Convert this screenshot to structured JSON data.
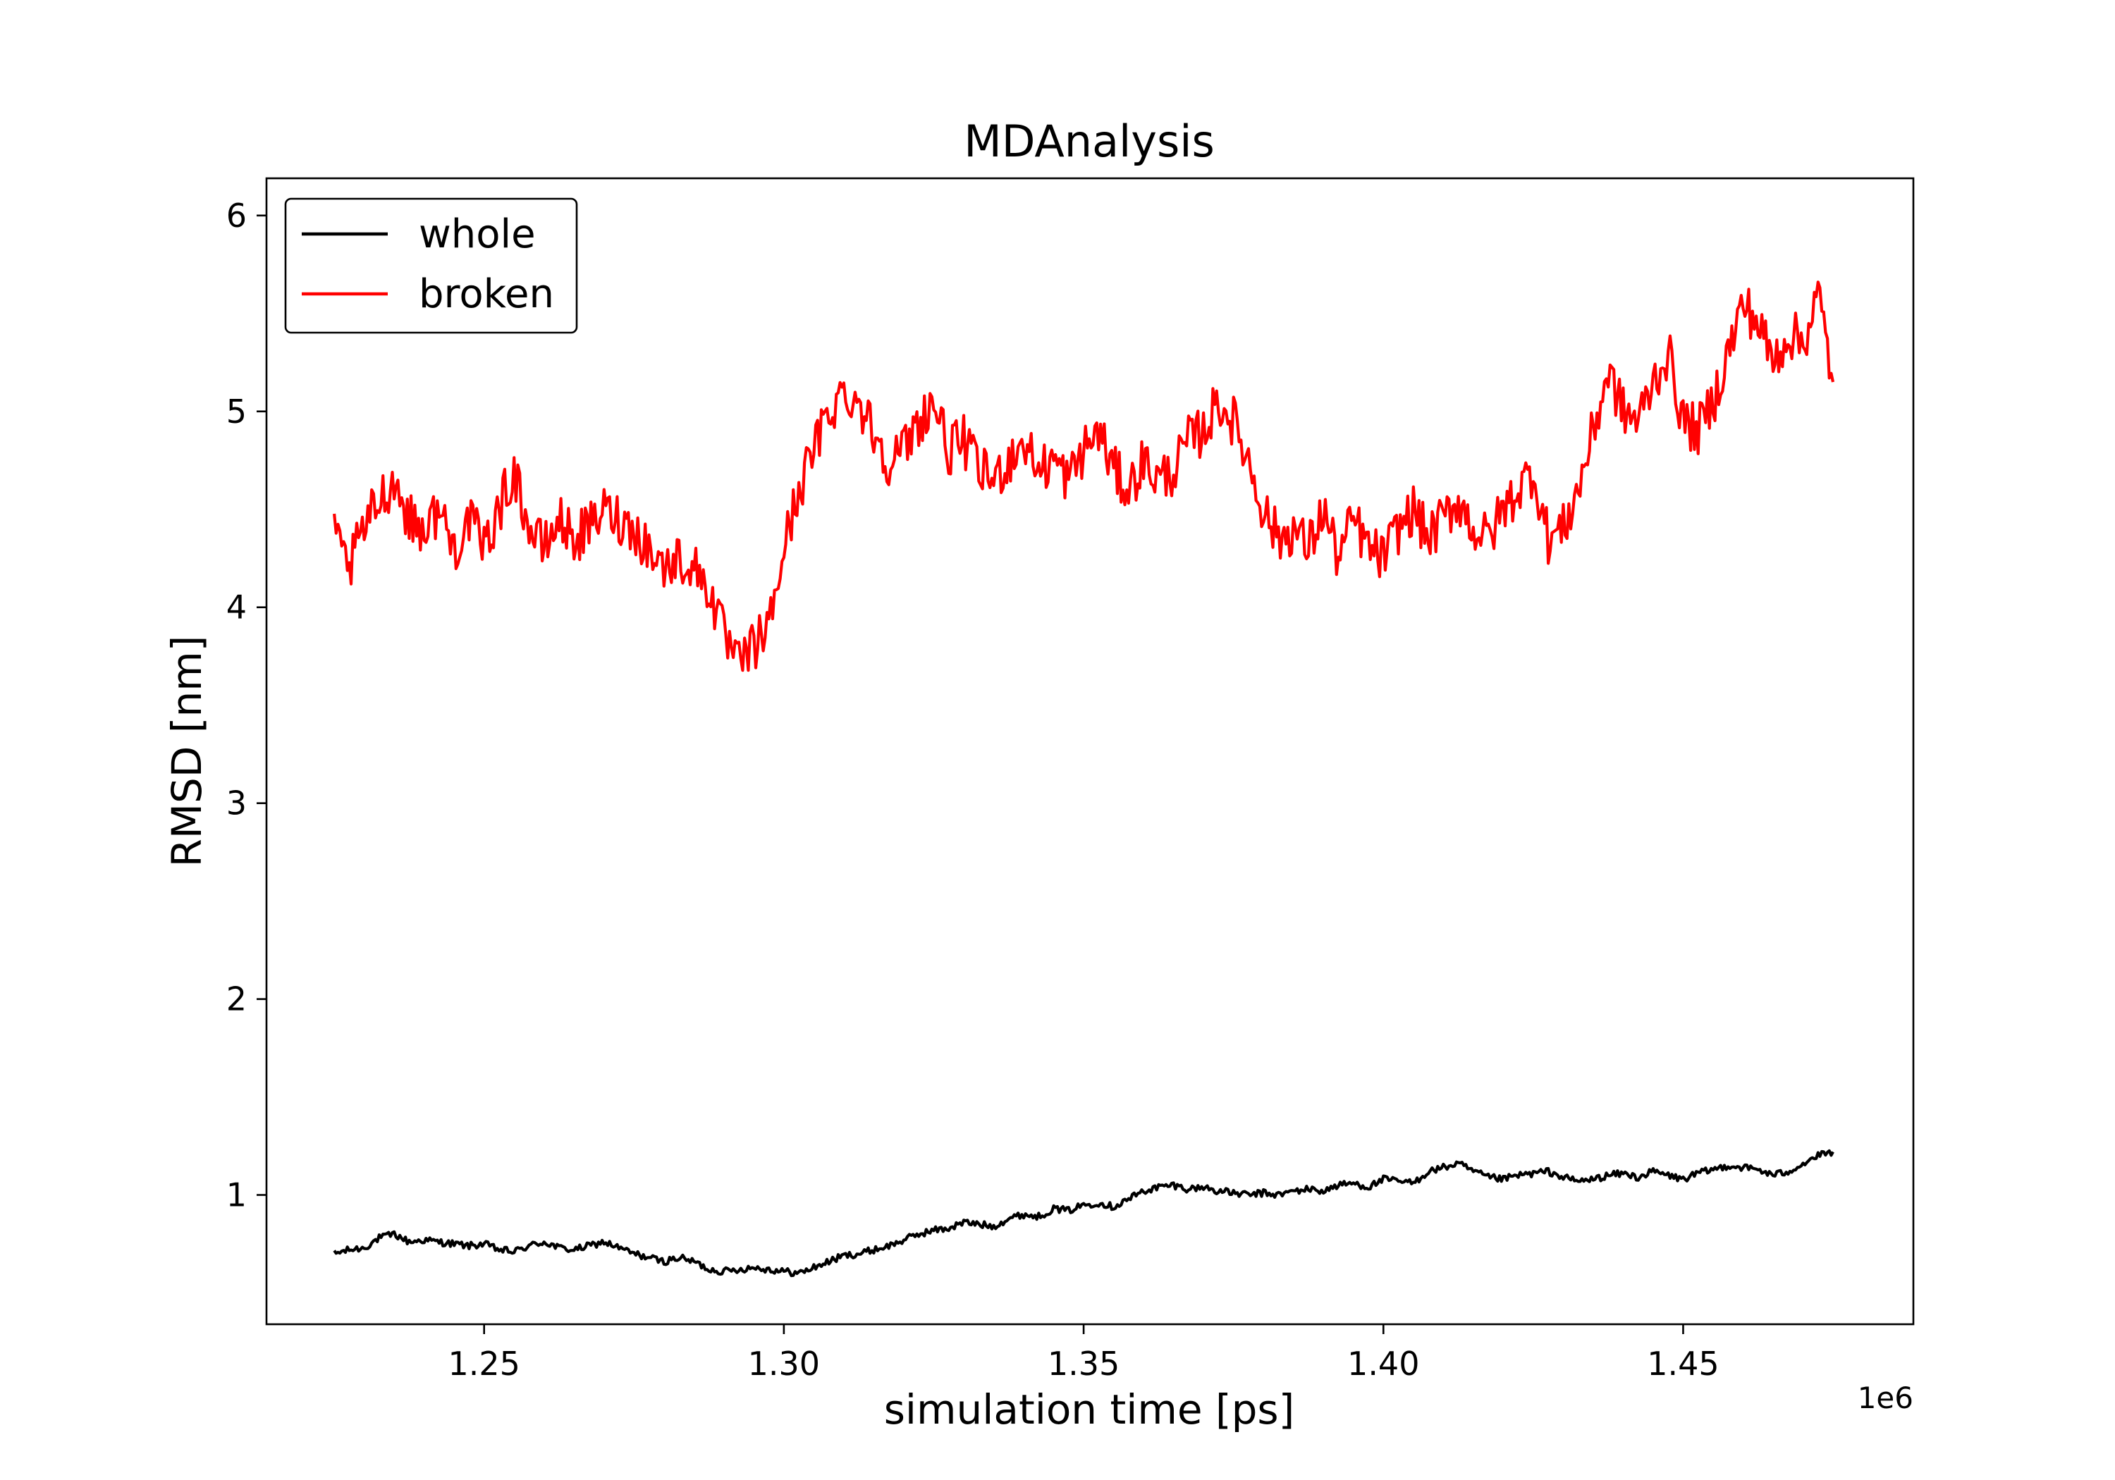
{
  "chart_data": {
    "type": "line",
    "title": "MDAnalysis",
    "xlabel": "simulation time [ps]",
    "ylabel": "RMSD [nm]",
    "x_offset_label": "1e6",
    "xlim": [
      1.2137,
      1.4884
    ],
    "ylim": [
      0.34,
      6.19
    ],
    "x_ticks": [
      1.25,
      1.3,
      1.35,
      1.4,
      1.45
    ],
    "x_tick_labels": [
      "1.25",
      "1.30",
      "1.35",
      "1.40",
      "1.45"
    ],
    "y_ticks": [
      1,
      2,
      3,
      4,
      5,
      6
    ],
    "y_tick_labels": [
      "1",
      "2",
      "3",
      "4",
      "5",
      "6"
    ],
    "grid": false,
    "legend_position": "top-left",
    "series": [
      {
        "name": "whole",
        "color": "#000000",
        "x": [
          1.225,
          1.2275,
          1.23,
          1.2325,
          1.235,
          1.2375,
          1.24,
          1.2425,
          1.245,
          1.2475,
          1.25,
          1.2525,
          1.255,
          1.2575,
          1.26,
          1.2625,
          1.265,
          1.2675,
          1.27,
          1.2725,
          1.275,
          1.2775,
          1.28,
          1.2825,
          1.285,
          1.2875,
          1.29,
          1.2925,
          1.295,
          1.2975,
          1.3,
          1.3025,
          1.305,
          1.3075,
          1.31,
          1.3125,
          1.315,
          1.3175,
          1.32,
          1.3225,
          1.325,
          1.3275,
          1.33,
          1.3325,
          1.335,
          1.3375,
          1.34,
          1.3425,
          1.345,
          1.3475,
          1.35,
          1.3525,
          1.355,
          1.3575,
          1.36,
          1.3625,
          1.365,
          1.3675,
          1.37,
          1.3725,
          1.375,
          1.3775,
          1.38,
          1.3825,
          1.385,
          1.3875,
          1.39,
          1.3925,
          1.395,
          1.3975,
          1.4,
          1.4025,
          1.405,
          1.4075,
          1.41,
          1.4125,
          1.415,
          1.4175,
          1.42,
          1.4225,
          1.425,
          1.4275,
          1.43,
          1.4325,
          1.435,
          1.4375,
          1.44,
          1.4425,
          1.445,
          1.4475,
          1.45,
          1.4525,
          1.455,
          1.4575,
          1.46,
          1.4625,
          1.465,
          1.4675,
          1.47,
          1.4725,
          1.475
        ],
        "y": [
          0.7,
          0.72,
          0.73,
          0.78,
          0.8,
          0.76,
          0.77,
          0.76,
          0.75,
          0.74,
          0.75,
          0.72,
          0.71,
          0.74,
          0.76,
          0.73,
          0.72,
          0.74,
          0.76,
          0.73,
          0.7,
          0.68,
          0.66,
          0.68,
          0.66,
          0.62,
          0.61,
          0.62,
          0.63,
          0.62,
          0.61,
          0.6,
          0.63,
          0.66,
          0.69,
          0.7,
          0.72,
          0.74,
          0.77,
          0.8,
          0.82,
          0.83,
          0.86,
          0.85,
          0.84,
          0.88,
          0.9,
          0.89,
          0.93,
          0.92,
          0.95,
          0.96,
          0.94,
          0.98,
          1.02,
          1.04,
          1.05,
          1.03,
          1.04,
          1.02,
          1.01,
          1.0,
          1.01,
          1.0,
          1.02,
          1.03,
          1.02,
          1.05,
          1.06,
          1.04,
          1.08,
          1.07,
          1.06,
          1.12,
          1.14,
          1.16,
          1.12,
          1.09,
          1.08,
          1.1,
          1.11,
          1.12,
          1.09,
          1.07,
          1.08,
          1.1,
          1.11,
          1.09,
          1.12,
          1.1,
          1.08,
          1.11,
          1.13,
          1.15,
          1.14,
          1.13,
          1.1,
          1.12,
          1.16,
          1.2,
          1.22
        ],
        "noise": 0.018
      },
      {
        "name": "broken",
        "color": "#ff0000",
        "x": [
          1.225,
          1.2275,
          1.23,
          1.2325,
          1.235,
          1.2375,
          1.24,
          1.2425,
          1.245,
          1.2475,
          1.25,
          1.2525,
          1.255,
          1.2575,
          1.26,
          1.2625,
          1.265,
          1.2675,
          1.27,
          1.2725,
          1.275,
          1.2775,
          1.28,
          1.2825,
          1.285,
          1.2875,
          1.29,
          1.2925,
          1.295,
          1.2975,
          1.3,
          1.3025,
          1.305,
          1.3075,
          1.31,
          1.3125,
          1.315,
          1.3175,
          1.32,
          1.3225,
          1.325,
          1.3275,
          1.33,
          1.3325,
          1.335,
          1.3375,
          1.34,
          1.3425,
          1.345,
          1.3475,
          1.35,
          1.3525,
          1.355,
          1.3575,
          1.36,
          1.3625,
          1.365,
          1.3675,
          1.37,
          1.3725,
          1.375,
          1.3775,
          1.38,
          1.3825,
          1.385,
          1.3875,
          1.39,
          1.3925,
          1.395,
          1.3975,
          1.4,
          1.4025,
          1.405,
          1.4075,
          1.41,
          1.4125,
          1.415,
          1.4175,
          1.42,
          1.4225,
          1.425,
          1.4275,
          1.43,
          1.4325,
          1.435,
          1.4375,
          1.44,
          1.4425,
          1.445,
          1.4475,
          1.45,
          1.4525,
          1.455,
          1.4575,
          1.46,
          1.4625,
          1.465,
          1.4675,
          1.47,
          1.4725,
          1.475
        ],
        "y": [
          4.35,
          4.2,
          4.4,
          4.55,
          4.65,
          4.45,
          4.4,
          4.5,
          4.3,
          4.45,
          4.3,
          4.5,
          4.7,
          4.4,
          4.3,
          4.45,
          4.35,
          4.4,
          4.5,
          4.45,
          4.4,
          4.3,
          4.2,
          4.25,
          4.2,
          4.1,
          3.85,
          3.7,
          3.8,
          3.9,
          4.3,
          4.6,
          4.8,
          5.0,
          5.1,
          5.05,
          4.9,
          4.75,
          4.8,
          4.95,
          5.05,
          4.8,
          4.85,
          4.7,
          4.65,
          4.75,
          4.85,
          4.7,
          4.75,
          4.65,
          4.8,
          4.9,
          4.7,
          4.6,
          4.75,
          4.65,
          4.7,
          4.85,
          4.9,
          5.05,
          4.95,
          4.75,
          4.5,
          4.35,
          4.4,
          4.3,
          4.5,
          4.25,
          4.45,
          4.3,
          4.25,
          4.4,
          4.5,
          4.35,
          4.45,
          4.55,
          4.4,
          4.35,
          4.5,
          4.6,
          4.7,
          4.35,
          4.4,
          4.6,
          4.9,
          5.2,
          5.0,
          4.95,
          5.15,
          5.3,
          4.95,
          4.9,
          5.05,
          5.3,
          5.55,
          5.45,
          5.25,
          5.4,
          5.35,
          5.6,
          5.15
        ],
        "noise": 0.13
      }
    ]
  }
}
